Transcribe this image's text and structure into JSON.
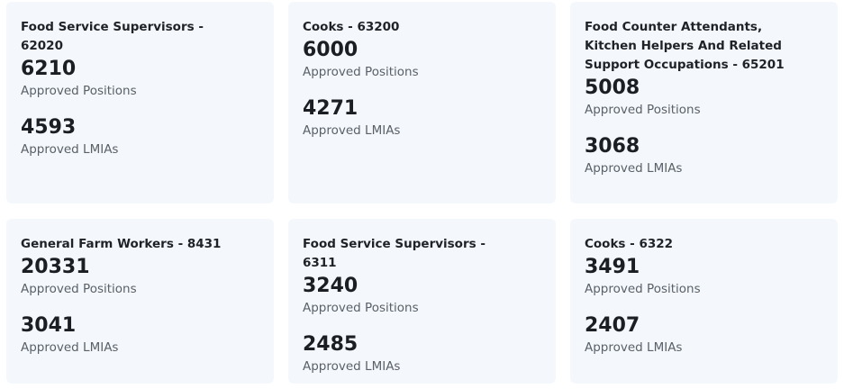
{
  "cards": [
    {
      "title": "Food Service Supervisors - 62020",
      "positions_value": "6210",
      "positions_label": "Approved Positions",
      "lmias_value": "4593",
      "lmias_label": "Approved LMIAs"
    },
    {
      "title": "Cooks - 63200",
      "positions_value": "6000",
      "positions_label": "Approved Positions",
      "lmias_value": "4271",
      "lmias_label": "Approved LMIAs"
    },
    {
      "title": "Food Counter Attendants, Kitchen Helpers And Related Support Occupations - 65201",
      "positions_value": "5008",
      "positions_label": "Approved Positions",
      "lmias_value": "3068",
      "lmias_label": "Approved LMIAs"
    },
    {
      "title": "General Farm Workers - 8431",
      "positions_value": "20331",
      "positions_label": "Approved Positions",
      "lmias_value": "3041",
      "lmias_label": "Approved LMIAs"
    },
    {
      "title": "Food Service Supervisors - 6311",
      "positions_value": "3240",
      "positions_label": "Approved Positions",
      "lmias_value": "2485",
      "lmias_label": "Approved LMIAs"
    },
    {
      "title": "Cooks - 6322",
      "positions_value": "3491",
      "positions_label": "Approved Positions",
      "lmias_value": "2407",
      "lmias_label": "Approved LMIAs"
    }
  ]
}
